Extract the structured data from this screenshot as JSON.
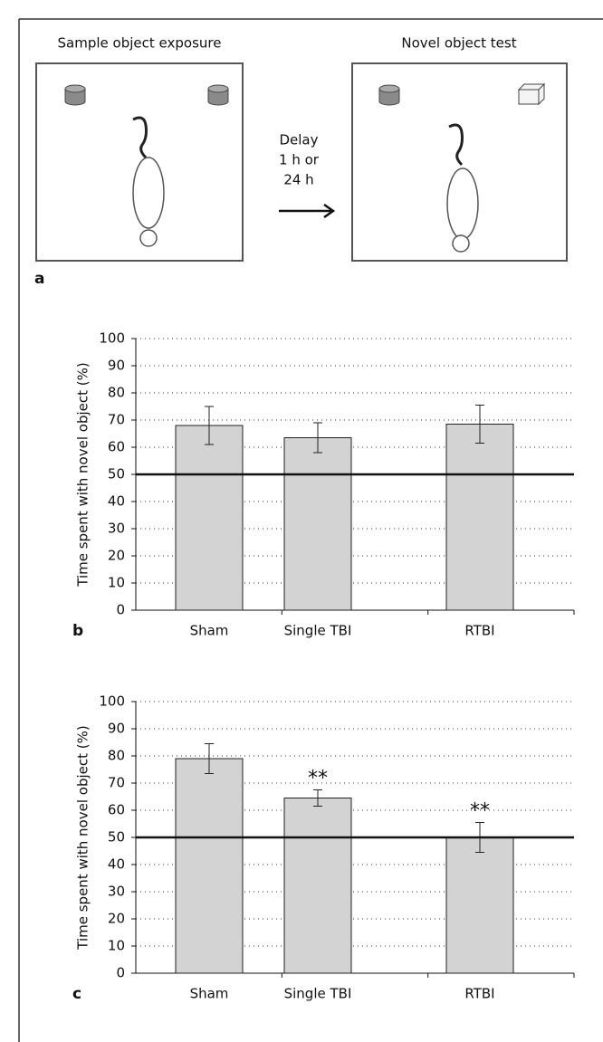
{
  "diagram": {
    "left_title": "Sample object exposure",
    "right_title": "Novel object test",
    "arrow_label": [
      "Delay",
      "1 h or",
      "24 h"
    ],
    "panel_label": "a"
  },
  "chart_data": [
    {
      "type": "bar",
      "panel_label": "b",
      "ylabel": "Time spent with novel object (%)",
      "categories": [
        "Sham",
        "Single TBI",
        "RTBI"
      ],
      "values": [
        68,
        63.5,
        68.5
      ],
      "errors": [
        7,
        5.5,
        7
      ],
      "annotations": [
        null,
        null,
        null
      ],
      "color": "#d3d3d3",
      "ylim": [
        0,
        100
      ],
      "yticks": [
        0,
        10,
        20,
        30,
        40,
        50,
        60,
        70,
        80,
        90,
        100
      ],
      "grid": true,
      "hline": 50
    },
    {
      "type": "bar",
      "panel_label": "c",
      "ylabel": "Time spent with novel object (%)",
      "categories": [
        "Sham",
        "Single TBI",
        "RTBI"
      ],
      "values": [
        79,
        64.5,
        50
      ],
      "errors": [
        5.5,
        3,
        5.5
      ],
      "annotations": [
        null,
        "**",
        "**"
      ],
      "color": "#d3d3d3",
      "ylim": [
        0,
        100
      ],
      "yticks": [
        0,
        10,
        20,
        30,
        40,
        50,
        60,
        70,
        80,
        90,
        100
      ],
      "grid": true,
      "hline": 50
    }
  ]
}
